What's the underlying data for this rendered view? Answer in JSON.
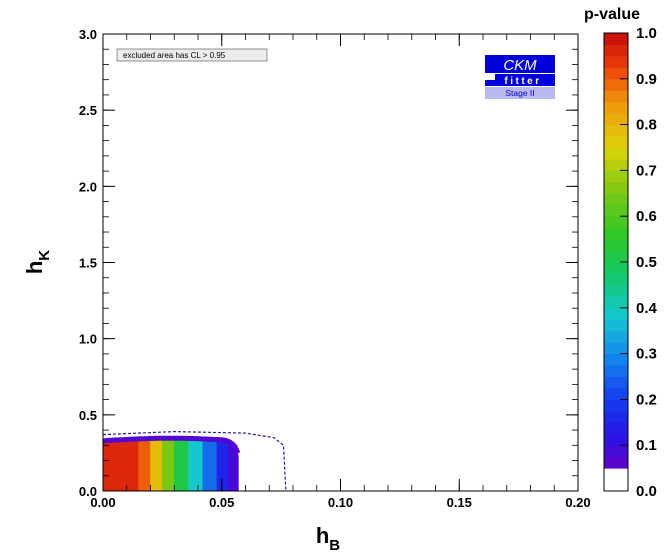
{
  "chart_data": {
    "type": "heatmap",
    "title": "",
    "xlabel": "h",
    "xlabel_sub": "B",
    "ylabel": "h",
    "ylabel_sub": "K",
    "xlim": [
      0.0,
      0.2
    ],
    "ylim": [
      0.0,
      3.0
    ],
    "x_ticks": [
      0.0,
      0.05,
      0.1,
      0.15,
      0.2
    ],
    "x_tick_labels": [
      "0.00",
      "0.05",
      "0.10",
      "0.15",
      "0.20"
    ],
    "y_ticks": [
      0.0,
      0.5,
      1.0,
      1.5,
      2.0,
      2.5,
      3.0
    ],
    "y_tick_labels": [
      "0.0",
      "0.5",
      "1.0",
      "1.5",
      "2.0",
      "2.5",
      "3.0"
    ],
    "grid": false,
    "colorbar": {
      "label": "p-value",
      "range": [
        0.0,
        1.0
      ],
      "ticks": [
        0.0,
        0.1,
        0.2,
        0.3,
        0.4,
        0.5,
        0.6,
        0.7,
        0.8,
        0.9,
        1.0
      ],
      "tick_labels": [
        "0.0",
        "0.1",
        "0.2",
        "0.3",
        "0.4",
        "0.5",
        "0.6",
        "0.7",
        "0.8",
        "0.9",
        "1.0"
      ],
      "excluded_color": "#ffffff",
      "excluded_below": 0.05
    },
    "allowed_region": {
      "hB_max": 0.057,
      "hK_max": 0.33,
      "color_bands": [
        {
          "hB": 0.0,
          "p": 0.97
        },
        {
          "hB": 0.015,
          "p": 0.95
        },
        {
          "hB": 0.02,
          "p": 0.85
        },
        {
          "hB": 0.025,
          "p": 0.72
        },
        {
          "hB": 0.03,
          "p": 0.58
        },
        {
          "hB": 0.036,
          "p": 0.45
        },
        {
          "hB": 0.042,
          "p": 0.32
        },
        {
          "hB": 0.048,
          "p": 0.2
        },
        {
          "hB": 0.053,
          "p": 0.1
        },
        {
          "hB": 0.057,
          "p": 0.06
        }
      ]
    },
    "contour_dashed": {
      "color": "#1a1aa0",
      "points": [
        [
          0.0,
          0.37
        ],
        [
          0.03,
          0.39
        ],
        [
          0.06,
          0.38
        ],
        [
          0.072,
          0.35
        ],
        [
          0.076,
          0.3
        ],
        [
          0.077,
          0.0
        ]
      ]
    },
    "annotations": [
      {
        "text": "excluded area has CL > 0.95"
      }
    ]
  },
  "logo": {
    "line1": "CKM",
    "line2": "fitter",
    "line3": "Stage II",
    "color": "#0000dd"
  }
}
